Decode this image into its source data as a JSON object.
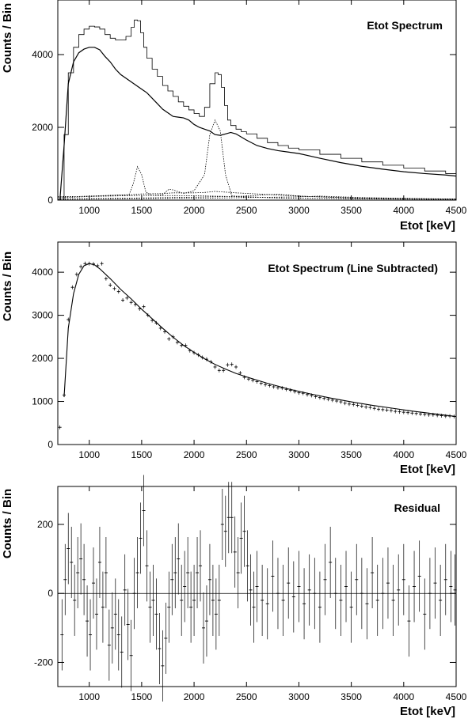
{
  "chart_data": [
    {
      "type": "line",
      "title": "Etot Spectrum",
      "xlabel": "Etot [keV]",
      "ylabel": "Counts / Bin",
      "xlim": [
        700,
        4500
      ],
      "ylim": [
        0,
        5500
      ],
      "xticks": [
        1000,
        1500,
        2000,
        2500,
        3000,
        3500,
        4000,
        4500
      ],
      "xtick_labels": [
        "1000",
        "1500",
        "2000",
        "2500",
        "3000",
        "3500",
        "4000",
        "4500"
      ],
      "yticks": [
        0,
        2000,
        4000
      ],
      "ytick_labels": [
        "0",
        "2000",
        "4000"
      ],
      "grid": false,
      "series": [
        {
          "style": "step",
          "x": [
            720,
            760,
            800,
            850,
            900,
            950,
            1000,
            1050,
            1100,
            1150,
            1200,
            1250,
            1300,
            1350,
            1400,
            1430,
            1460,
            1490,
            1520,
            1550,
            1600,
            1650,
            1700,
            1750,
            1800,
            1850,
            1900,
            1950,
            2000,
            2050,
            2100,
            2150,
            2200,
            2230,
            2260,
            2290,
            2320,
            2350,
            2400,
            2450,
            2500,
            2600,
            2700,
            2800,
            2900,
            3000,
            3200,
            3400,
            3600,
            3800,
            4000,
            4200,
            4400,
            4500
          ],
          "y": [
            0,
            1800,
            3500,
            4200,
            4550,
            4700,
            4780,
            4760,
            4700,
            4550,
            4450,
            4400,
            4400,
            4500,
            4750,
            4950,
            4930,
            4600,
            4200,
            3900,
            3600,
            3400,
            3150,
            3000,
            2850,
            2700,
            2580,
            2480,
            2380,
            2300,
            2550,
            3200,
            3500,
            3450,
            3100,
            2600,
            2200,
            2050,
            1950,
            1880,
            1820,
            1700,
            1580,
            1500,
            1430,
            1380,
            1260,
            1150,
            1050,
            960,
            880,
            800,
            730,
            690
          ]
        },
        {
          "style": "solid",
          "x": [
            720,
            760,
            800,
            850,
            900,
            950,
            1000,
            1050,
            1100,
            1150,
            1200,
            1250,
            1300,
            1350,
            1400,
            1450,
            1500,
            1550,
            1600,
            1650,
            1700,
            1750,
            1800,
            1850,
            1900,
            1950,
            2000,
            2050,
            2100,
            2150,
            2200,
            2250,
            2300,
            2350,
            2400,
            2500,
            2600,
            2700,
            2800,
            2900,
            3000,
            3200,
            3400,
            3600,
            3800,
            4000,
            4200,
            4400,
            4500
          ],
          "y": [
            0,
            1500,
            3200,
            3800,
            4050,
            4150,
            4200,
            4200,
            4130,
            3950,
            3800,
            3600,
            3450,
            3350,
            3250,
            3150,
            3050,
            2950,
            2800,
            2650,
            2500,
            2400,
            2300,
            2280,
            2260,
            2200,
            2080,
            2000,
            1950,
            1900,
            1800,
            1780,
            1820,
            1860,
            1820,
            1650,
            1500,
            1420,
            1360,
            1320,
            1280,
            1150,
            1030,
            930,
            850,
            780,
            730,
            690,
            660
          ]
        },
        {
          "style": "dotted",
          "x": [
            700,
            1000,
            1500,
            2000,
            2500,
            2800,
            3000,
            3500,
            4000,
            4500
          ],
          "y": [
            100,
            100,
            130,
            120,
            90,
            60,
            50,
            35,
            25,
            15
          ]
        },
        {
          "style": "dotted",
          "x": [
            720,
            1000,
            1300,
            1400,
            1500,
            1700,
            1800,
            2000,
            2100,
            2200,
            2300,
            2400,
            2600,
            2800,
            3000,
            3500,
            4000,
            4500
          ],
          "y": [
            60,
            100,
            140,
            150,
            170,
            180,
            200,
            200,
            210,
            240,
            220,
            200,
            170,
            140,
            110,
            60,
            40,
            30
          ]
        },
        {
          "style": "dotted",
          "x": [
            700,
            1380,
            1420,
            1460,
            1500,
            1540,
            1600,
            1700,
            1760,
            1800,
            1900,
            2000,
            2100,
            2150,
            2200,
            2250,
            2300,
            2360,
            2450,
            2600,
            2800,
            3000,
            3500,
            4000,
            4500
          ],
          "y": [
            80,
            150,
            450,
            920,
            700,
            220,
            130,
            150,
            300,
            280,
            180,
            260,
            700,
            1800,
            2200,
            1900,
            700,
            120,
            90,
            80,
            60,
            50,
            40,
            30,
            25
          ]
        },
        {
          "style": "dotted",
          "x": [
            700,
            1000,
            1500,
            2000,
            2500,
            2700,
            2800,
            2900,
            3000,
            3500,
            4000,
            4500
          ],
          "y": [
            30,
            40,
            60,
            80,
            110,
            150,
            160,
            140,
            110,
            60,
            40,
            20
          ]
        },
        {
          "style": "dotted",
          "x": [
            700,
            1000,
            1500,
            2000,
            2500,
            3000,
            3200,
            3400,
            3600,
            4000,
            4500
          ],
          "y": [
            20,
            30,
            40,
            50,
            70,
            90,
            110,
            90,
            70,
            50,
            30
          ]
        }
      ]
    },
    {
      "type": "scatter",
      "title": "Etot Spectrum (Line Subtracted)",
      "xlabel": "Etot [keV]",
      "ylabel": "Counts / Bin",
      "xlim": [
        700,
        4500
      ],
      "ylim": [
        0,
        4700
      ],
      "xticks": [
        1000,
        1500,
        2000,
        2500,
        3000,
        3500,
        4000,
        4500
      ],
      "xtick_labels": [
        "1000",
        "1500",
        "2000",
        "2500",
        "3000",
        "3500",
        "4000",
        "4500"
      ],
      "yticks": [
        0,
        1000,
        2000,
        3000,
        4000
      ],
      "ytick_labels": [
        "0",
        "1000",
        "2000",
        "3000",
        "4000"
      ],
      "grid": false,
      "points": {
        "x": [
          720,
          760,
          800,
          840,
          880,
          920,
          960,
          1000,
          1040,
          1080,
          1120,
          1160,
          1200,
          1240,
          1280,
          1320,
          1360,
          1400,
          1440,
          1480,
          1520,
          1560,
          1600,
          1640,
          1680,
          1720,
          1760,
          1800,
          1840,
          1880,
          1920,
          1960,
          2000,
          2040,
          2080,
          2120,
          2160,
          2200,
          2240,
          2280,
          2320,
          2360,
          2400,
          2440,
          2480,
          2520,
          2560,
          2600,
          2640,
          2680,
          2720,
          2760,
          2800,
          2840,
          2880,
          2920,
          2960,
          3000,
          3040,
          3080,
          3120,
          3160,
          3200,
          3240,
          3280,
          3320,
          3360,
          3400,
          3440,
          3480,
          3520,
          3560,
          3600,
          3640,
          3680,
          3720,
          3760,
          3800,
          3840,
          3880,
          3920,
          3960,
          4000,
          4040,
          4080,
          4120,
          4160,
          4200,
          4240,
          4280,
          4320,
          4360,
          4400,
          4440,
          4480
        ],
        "y": [
          400,
          1150,
          2900,
          3650,
          3950,
          4130,
          4200,
          4200,
          4190,
          4150,
          4200,
          3850,
          3700,
          3620,
          3550,
          3350,
          3400,
          3300,
          3250,
          3150,
          3200,
          3000,
          2880,
          2820,
          2700,
          2620,
          2450,
          2500,
          2370,
          2300,
          2300,
          2180,
          2130,
          2080,
          2020,
          1980,
          1920,
          1800,
          1720,
          1720,
          1850,
          1860,
          1800,
          1660,
          1560,
          1520,
          1490,
          1460,
          1420,
          1390,
          1370,
          1340,
          1320,
          1310,
          1280,
          1260,
          1230,
          1200,
          1190,
          1160,
          1140,
          1110,
          1090,
          1070,
          1050,
          1030,
          1010,
          990,
          960,
          940,
          930,
          910,
          890,
          870,
          860,
          840,
          820,
          810,
          800,
          790,
          770,
          760,
          750,
          740,
          730,
          720,
          710,
          700,
          690,
          690,
          680,
          670,
          660,
          660,
          650
        ]
      },
      "fit": {
        "x": [
          760,
          800,
          850,
          900,
          950,
          1000,
          1050,
          1100,
          1200,
          1300,
          1400,
          1500,
          1600,
          1700,
          1800,
          1900,
          2000,
          2100,
          2200,
          2300,
          2400,
          2500,
          2700,
          2900,
          3100,
          3300,
          3500,
          3700,
          3900,
          4100,
          4300,
          4500
        ],
        "y": [
          1100,
          2700,
          3500,
          3950,
          4150,
          4200,
          4170,
          4080,
          3850,
          3600,
          3380,
          3140,
          2920,
          2700,
          2490,
          2300,
          2140,
          1990,
          1860,
          1750,
          1650,
          1570,
          1420,
          1290,
          1180,
          1080,
          990,
          910,
          840,
          770,
          710,
          650
        ]
      }
    },
    {
      "type": "scatter",
      "title": "Residual",
      "xlabel": "Etot [keV]",
      "ylabel": "Counts / Bin",
      "xlim": [
        700,
        4500
      ],
      "ylim": [
        -270,
        310
      ],
      "xticks": [
        1000,
        1500,
        2000,
        2500,
        3000,
        3500,
        4000,
        4500
      ],
      "xtick_labels": [
        "1000",
        "1500",
        "2000",
        "2500",
        "3000",
        "3500",
        "4000",
        "4500"
      ],
      "yticks": [
        -200,
        0,
        200
      ],
      "ytick_labels": [
        "-200",
        "0",
        "200"
      ],
      "grid": false,
      "zero_line": true,
      "points": {
        "x": [
          740,
          770,
          800,
          830,
          860,
          890,
          920,
          950,
          980,
          1010,
          1040,
          1070,
          1100,
          1130,
          1160,
          1190,
          1220,
          1250,
          1280,
          1310,
          1340,
          1370,
          1400,
          1430,
          1460,
          1490,
          1520,
          1550,
          1580,
          1610,
          1640,
          1670,
          1700,
          1730,
          1760,
          1790,
          1820,
          1850,
          1880,
          1910,
          1940,
          1970,
          2000,
          2030,
          2060,
          2090,
          2120,
          2150,
          2180,
          2210,
          2240,
          2270,
          2300,
          2330,
          2360,
          2390,
          2420,
          2450,
          2480,
          2510,
          2540,
          2570,
          2600,
          2650,
          2700,
          2750,
          2800,
          2850,
          2900,
          2950,
          3000,
          3050,
          3100,
          3150,
          3200,
          3250,
          3300,
          3350,
          3400,
          3450,
          3500,
          3550,
          3600,
          3650,
          3700,
          3750,
          3800,
          3850,
          3900,
          3950,
          4000,
          4050,
          4100,
          4150,
          4200,
          4250,
          4300,
          4350,
          4400,
          4450,
          4490
        ],
        "y": [
          -120,
          40,
          130,
          90,
          -20,
          60,
          100,
          40,
          -80,
          -120,
          30,
          -60,
          90,
          -40,
          60,
          -150,
          -100,
          -60,
          -120,
          -170,
          10,
          -90,
          -180,
          0,
          60,
          160,
          240,
          80,
          -40,
          -20,
          -60,
          -160,
          -210,
          -130,
          -40,
          40,
          60,
          100,
          -20,
          20,
          60,
          -40,
          -20,
          60,
          80,
          -100,
          -80,
          40,
          -20,
          -60,
          -20,
          200,
          180,
          220,
          220,
          120,
          60,
          160,
          180,
          80,
          10,
          -40,
          20,
          -20,
          -30,
          50,
          0,
          -20,
          30,
          -10,
          20,
          -30,
          10,
          0,
          -40,
          40,
          90,
          0,
          -20,
          20,
          -40,
          40,
          0,
          -30,
          60,
          -20,
          0,
          30,
          -20,
          10,
          40,
          -80,
          20,
          50,
          -60,
          0,
          30,
          -20,
          40,
          20,
          10
        ]
      }
    }
  ]
}
